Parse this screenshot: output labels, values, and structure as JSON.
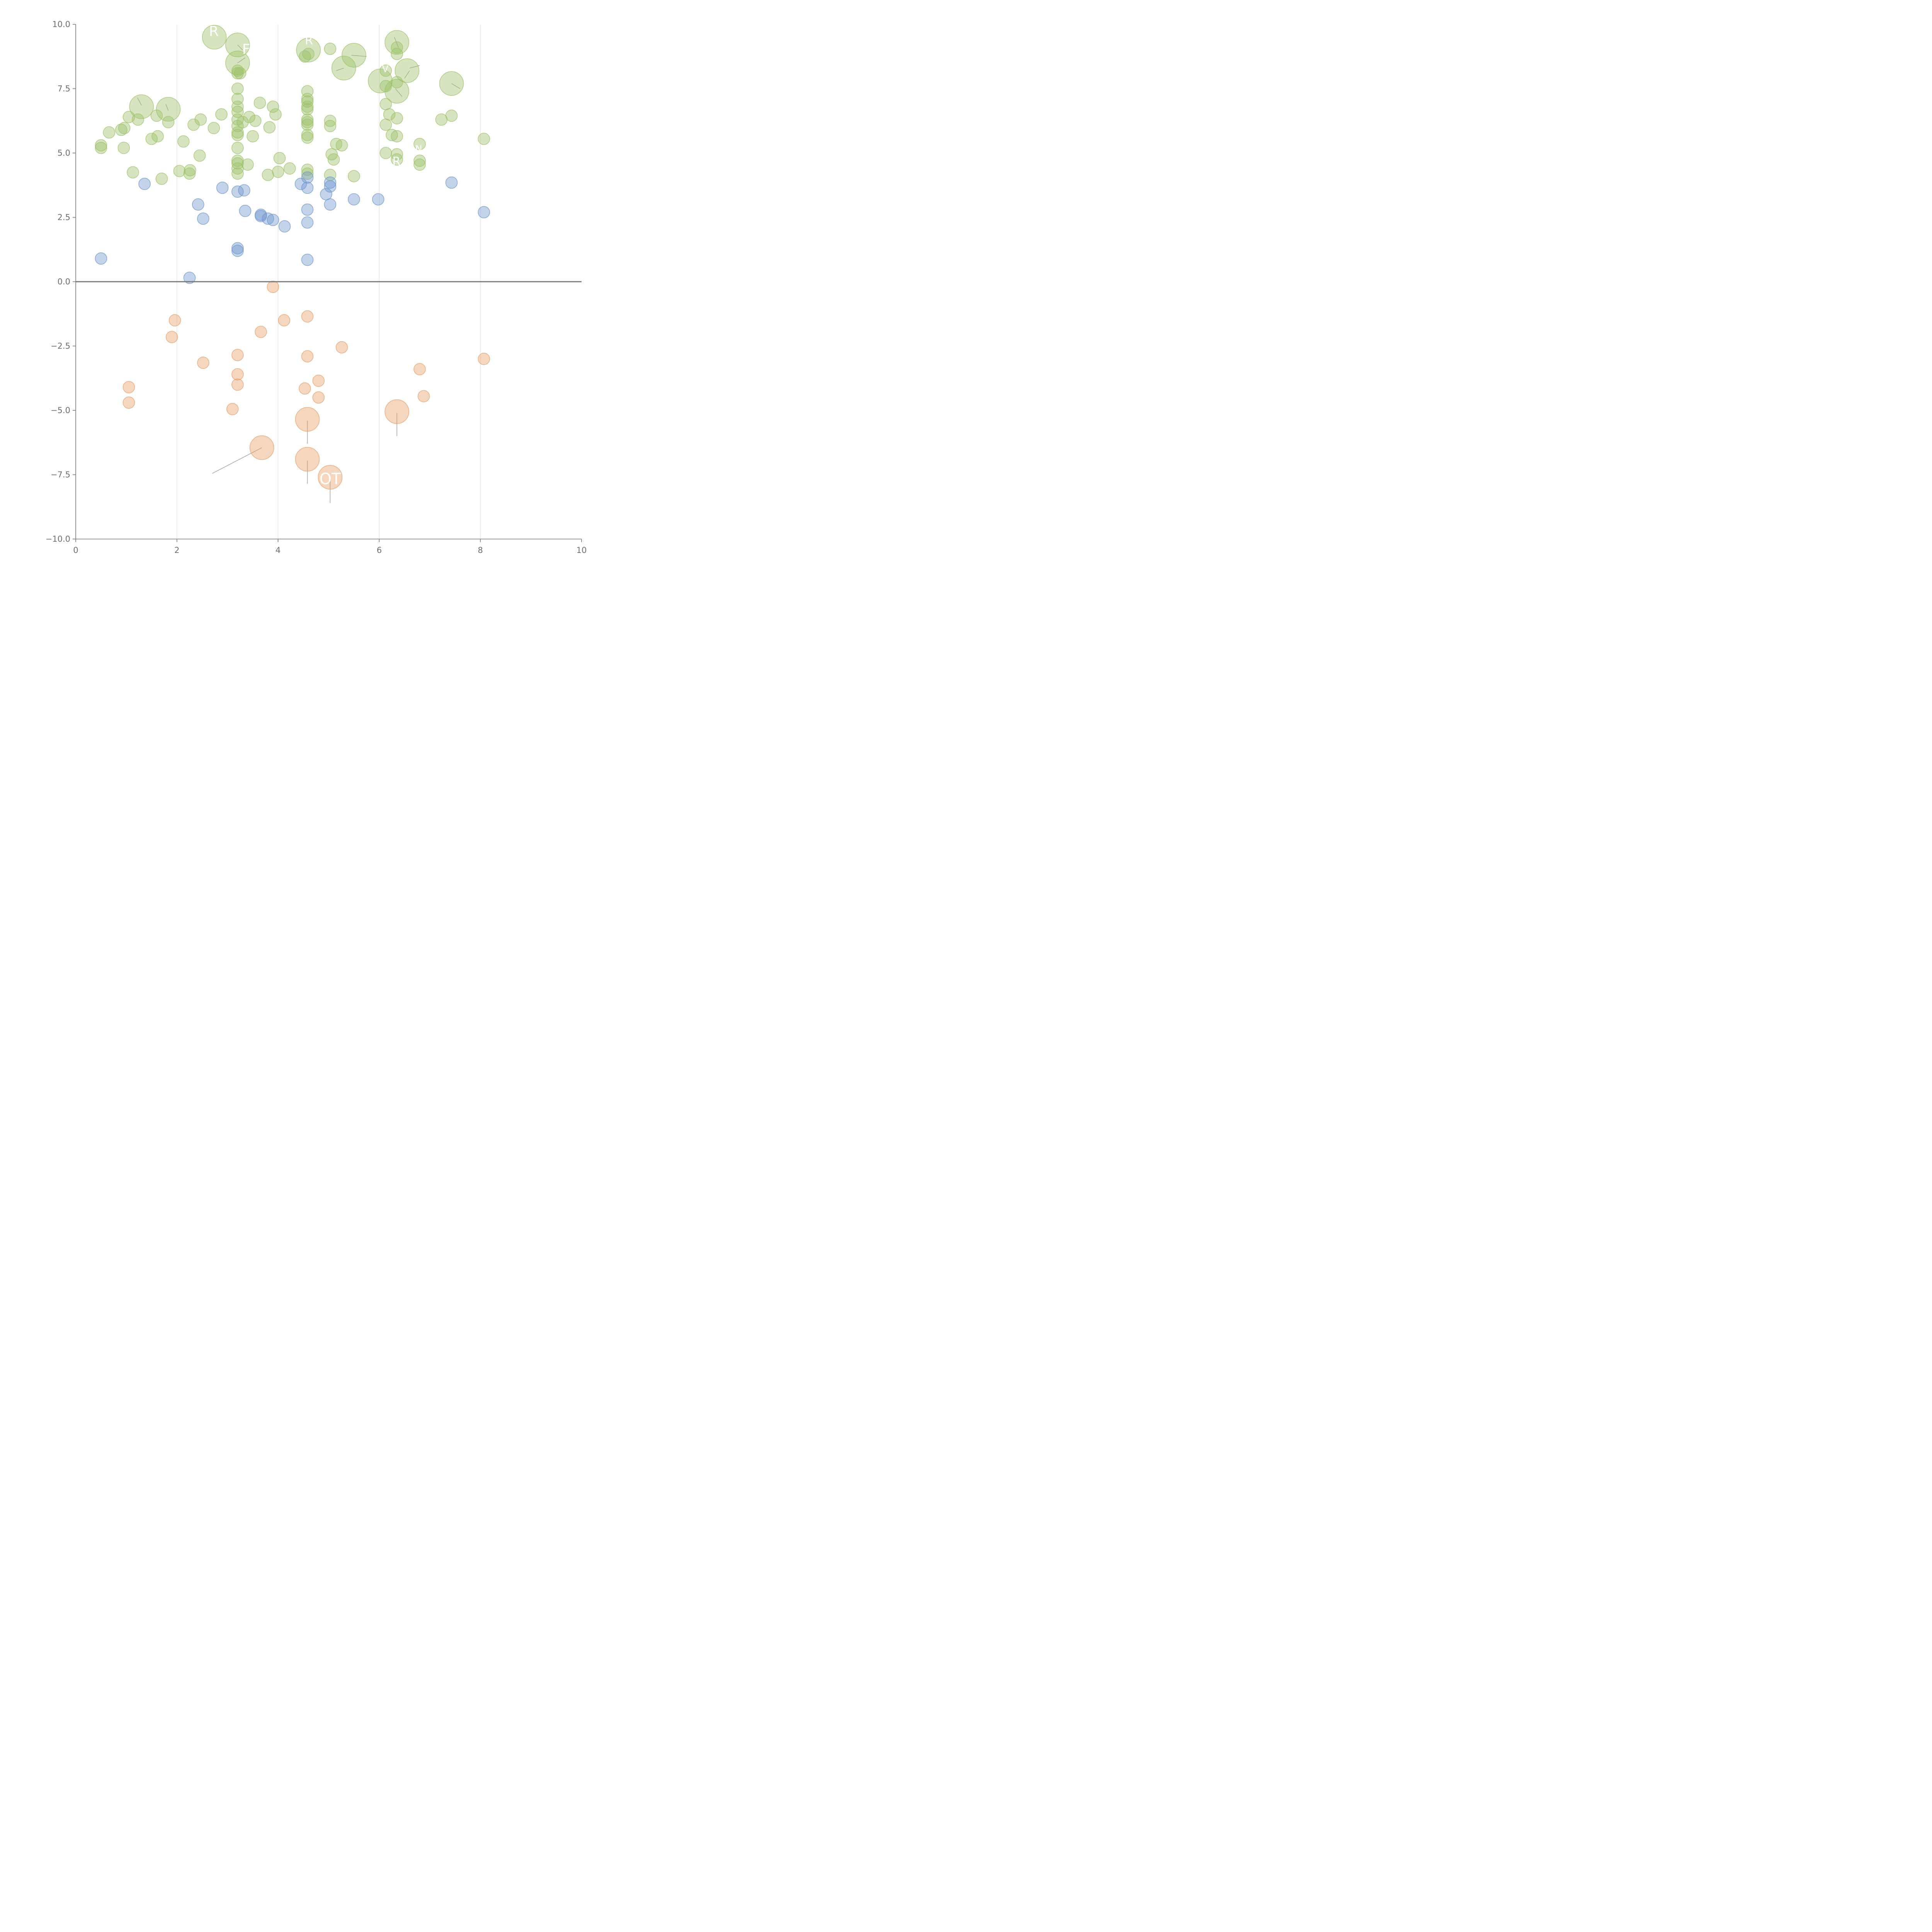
{
  "chart_data": {
    "type": "scatter",
    "title": "",
    "xlabel": "",
    "ylabel": "",
    "xlim": [
      0,
      10
    ],
    "ylim": [
      -10,
      10
    ],
    "grid": {
      "x": true,
      "y": false
    },
    "zero_line": true,
    "x_ticks": [
      "0",
      "2",
      "4",
      "6",
      "8",
      "10"
    ],
    "y_ticks": [
      "10.0",
      "7.5",
      "5.0",
      "2.5",
      "0.0",
      "−2.5",
      "−5.0",
      "−7.5",
      "−10.0"
    ],
    "colors": {
      "green": "#9dc16a",
      "blue": "#6f97cc",
      "orange": "#e7a06a"
    },
    "series": [
      {
        "key": "green",
        "points": [
          [
            0.5,
            5.3,
            1
          ],
          [
            0.5,
            5.2,
            1
          ],
          [
            0.66,
            5.8,
            1
          ],
          [
            0.9,
            5.9,
            1
          ],
          [
            0.96,
            5.97,
            1
          ],
          [
            0.95,
            5.2,
            1
          ],
          [
            1.05,
            6.4,
            1
          ],
          [
            1.13,
            4.25,
            1
          ],
          [
            1.23,
            6.3,
            1
          ],
          [
            1.3,
            6.8,
            2
          ],
          [
            1.5,
            5.55,
            1
          ],
          [
            1.6,
            6.45,
            1
          ],
          [
            1.62,
            5.65,
            1
          ],
          [
            1.7,
            4.0,
            1
          ],
          [
            1.83,
            6.7,
            2
          ],
          [
            1.83,
            6.2,
            1
          ],
          [
            2.05,
            4.3,
            1
          ],
          [
            2.13,
            5.45,
            1
          ],
          [
            2.25,
            4.2,
            1
          ],
          [
            2.26,
            4.33,
            1
          ],
          [
            2.33,
            6.1,
            1
          ],
          [
            2.45,
            4.9,
            1
          ],
          [
            2.47,
            6.3,
            1
          ],
          [
            2.73,
            5.97,
            1
          ],
          [
            2.74,
            9.5,
            2
          ],
          [
            2.88,
            6.5,
            1
          ],
          [
            3.2,
            9.2,
            2
          ],
          [
            3.2,
            8.5,
            2
          ],
          [
            3.2,
            8.2,
            1
          ],
          [
            3.2,
            8.1,
            1
          ],
          [
            3.2,
            7.5,
            1
          ],
          [
            3.2,
            7.1,
            1
          ],
          [
            3.2,
            6.8,
            1
          ],
          [
            3.2,
            6.6,
            1
          ],
          [
            3.2,
            6.3,
            1
          ],
          [
            3.2,
            6.05,
            1
          ],
          [
            3.2,
            5.8,
            1
          ],
          [
            3.2,
            5.7,
            1
          ],
          [
            3.2,
            5.2,
            1
          ],
          [
            3.2,
            4.7,
            1
          ],
          [
            3.2,
            4.6,
            1
          ],
          [
            3.2,
            4.4,
            1
          ],
          [
            3.2,
            4.2,
            1
          ],
          [
            3.25,
            8.1,
            1
          ],
          [
            3.3,
            6.2,
            1
          ],
          [
            3.4,
            4.55,
            1
          ],
          [
            3.43,
            6.4,
            1
          ],
          [
            3.5,
            5.65,
            1
          ],
          [
            3.55,
            6.25,
            1
          ],
          [
            3.64,
            6.95,
            1
          ],
          [
            3.8,
            4.15,
            1
          ],
          [
            3.83,
            6.0,
            1
          ],
          [
            3.9,
            6.8,
            1
          ],
          [
            3.95,
            6.5,
            1
          ],
          [
            4.0,
            4.27,
            1
          ],
          [
            4.03,
            4.8,
            1
          ],
          [
            4.23,
            4.4,
            1
          ],
          [
            4.53,
            8.75,
            1
          ],
          [
            4.58,
            7.4,
            1
          ],
          [
            4.58,
            7.1,
            1
          ],
          [
            4.58,
            7.0,
            1
          ],
          [
            4.58,
            6.8,
            1
          ],
          [
            4.58,
            6.7,
            1
          ],
          [
            4.58,
            6.3,
            1
          ],
          [
            4.58,
            6.2,
            1
          ],
          [
            4.58,
            6.1,
            1
          ],
          [
            4.58,
            5.7,
            1
          ],
          [
            4.58,
            5.6,
            1
          ],
          [
            4.58,
            4.35,
            1
          ],
          [
            4.58,
            4.2,
            1
          ],
          [
            4.6,
            9.0,
            2
          ],
          [
            4.6,
            8.85,
            1
          ],
          [
            5.03,
            9.05,
            1
          ],
          [
            5.03,
            6.25,
            1
          ],
          [
            5.03,
            6.05,
            1
          ],
          [
            5.03,
            4.15,
            1
          ],
          [
            5.06,
            4.95,
            1
          ],
          [
            5.1,
            4.75,
            1
          ],
          [
            5.15,
            5.35,
            1
          ],
          [
            5.26,
            5.3,
            1
          ],
          [
            5.3,
            8.3,
            2
          ],
          [
            5.5,
            8.8,
            2
          ],
          [
            5.5,
            4.1,
            1
          ],
          [
            6.02,
            7.8,
            2
          ],
          [
            6.13,
            8.2,
            1
          ],
          [
            6.13,
            7.6,
            1
          ],
          [
            6.13,
            6.9,
            1
          ],
          [
            6.13,
            6.1,
            1
          ],
          [
            6.13,
            5.0,
            1
          ],
          [
            6.2,
            6.5,
            1
          ],
          [
            6.25,
            5.7,
            1
          ],
          [
            6.35,
            9.3,
            2
          ],
          [
            6.35,
            9.1,
            1
          ],
          [
            6.35,
            8.85,
            1
          ],
          [
            6.35,
            7.75,
            1
          ],
          [
            6.35,
            7.4,
            2
          ],
          [
            6.35,
            6.35,
            1
          ],
          [
            6.35,
            5.65,
            1
          ],
          [
            6.35,
            4.95,
            1
          ],
          [
            6.35,
            4.75,
            1
          ],
          [
            6.55,
            8.2,
            2
          ],
          [
            6.8,
            5.35,
            1
          ],
          [
            6.8,
            4.7,
            1
          ],
          [
            6.8,
            4.55,
            1
          ],
          [
            7.23,
            6.3,
            1
          ],
          [
            7.43,
            7.7,
            2
          ],
          [
            7.43,
            6.45,
            1
          ],
          [
            8.07,
            5.55,
            1
          ]
        ]
      },
      {
        "key": "blue",
        "points": [
          [
            0.5,
            0.9,
            1
          ],
          [
            1.36,
            3.8,
            1
          ],
          [
            2.25,
            0.15,
            1
          ],
          [
            2.42,
            3.0,
            1
          ],
          [
            2.52,
            2.45,
            1
          ],
          [
            2.9,
            3.65,
            1
          ],
          [
            3.2,
            3.5,
            1
          ],
          [
            3.2,
            1.3,
            1
          ],
          [
            3.2,
            1.2,
            1
          ],
          [
            3.33,
            3.55,
            1
          ],
          [
            3.35,
            2.75,
            1
          ],
          [
            3.66,
            2.6,
            1
          ],
          [
            3.66,
            2.55,
            1
          ],
          [
            3.8,
            2.45,
            1
          ],
          [
            3.9,
            2.4,
            1
          ],
          [
            4.13,
            2.15,
            1
          ],
          [
            4.45,
            3.8,
            1
          ],
          [
            4.58,
            4.05,
            1
          ],
          [
            4.58,
            3.65,
            1
          ],
          [
            4.58,
            2.8,
            1
          ],
          [
            4.58,
            2.3,
            1
          ],
          [
            4.58,
            0.85,
            1
          ],
          [
            4.95,
            3.4,
            1
          ],
          [
            5.03,
            3.85,
            1
          ],
          [
            5.03,
            3.7,
            1
          ],
          [
            5.03,
            3.0,
            1
          ],
          [
            5.5,
            3.2,
            1
          ],
          [
            5.98,
            3.2,
            1
          ],
          [
            7.43,
            3.85,
            1
          ],
          [
            8.07,
            2.7,
            1
          ]
        ]
      },
      {
        "key": "orange",
        "points": [
          [
            1.05,
            -4.1,
            1
          ],
          [
            1.05,
            -4.7,
            1
          ],
          [
            1.9,
            -2.15,
            1
          ],
          [
            1.96,
            -1.5,
            1
          ],
          [
            2.52,
            -3.15,
            1
          ],
          [
            3.1,
            -4.95,
            1
          ],
          [
            3.2,
            -2.85,
            1
          ],
          [
            3.2,
            -3.6,
            1
          ],
          [
            3.2,
            -4.0,
            1
          ],
          [
            3.66,
            -1.95,
            1
          ],
          [
            3.68,
            -6.45,
            2
          ],
          [
            3.9,
            -0.2,
            1
          ],
          [
            4.12,
            -1.5,
            1
          ],
          [
            4.53,
            -4.15,
            1
          ],
          [
            4.58,
            -1.35,
            1
          ],
          [
            4.58,
            -2.9,
            1
          ],
          [
            4.58,
            -5.35,
            2
          ],
          [
            4.58,
            -6.9,
            2
          ],
          [
            4.8,
            -3.85,
            1
          ],
          [
            4.8,
            -4.5,
            1
          ],
          [
            5.03,
            -7.6,
            2
          ],
          [
            5.26,
            -2.55,
            1
          ],
          [
            6.35,
            -5.05,
            2
          ],
          [
            6.8,
            -3.4,
            1
          ],
          [
            6.88,
            -4.45,
            1
          ],
          [
            8.07,
            -3.0,
            1
          ]
        ]
      }
    ],
    "leader_lines": [
      [
        3.68,
        -6.45,
        2.7,
        -7.45
      ],
      [
        4.58,
        -5.4,
        4.58,
        -6.3
      ],
      [
        4.58,
        -6.95,
        4.58,
        -7.85
      ],
      [
        5.03,
        -7.75,
        5.03,
        -8.6
      ],
      [
        6.35,
        -5.1,
        6.35,
        -6.0
      ],
      [
        1.22,
        7.15,
        1.3,
        6.85
      ],
      [
        1.78,
        6.9,
        1.83,
        6.65
      ],
      [
        3.2,
        8.5,
        3.35,
        8.7
      ],
      [
        3.2,
        9.2,
        3.3,
        9.0
      ],
      [
        5.45,
        8.8,
        5.75,
        8.75
      ],
      [
        5.15,
        8.2,
        5.3,
        8.3
      ],
      [
        6.6,
        8.3,
        6.8,
        8.4
      ],
      [
        6.5,
        7.9,
        6.6,
        8.2
      ],
      [
        6.32,
        7.5,
        6.45,
        7.2
      ],
      [
        6.3,
        9.5,
        6.38,
        9.1
      ],
      [
        7.43,
        7.7,
        7.6,
        7.5
      ]
    ],
    "annotations": [
      {
        "text": "OT",
        "x": 5.03,
        "y": -7.7,
        "size": 40
      },
      {
        "text": "R",
        "x": 2.73,
        "y": 9.7,
        "size": 36
      },
      {
        "text": "F",
        "x": 3.37,
        "y": 9.0,
        "size": 36
      },
      {
        "text": "R",
        "x": 4.61,
        "y": 9.35,
        "size": 30
      },
      {
        "text": "R",
        "x": 6.34,
        "y": 4.65,
        "size": 30
      },
      {
        "text": "V",
        "x": 6.12,
        "y": 8.25,
        "size": 24
      },
      {
        "text": "N",
        "x": 6.78,
        "y": 5.15,
        "size": 24
      }
    ]
  }
}
